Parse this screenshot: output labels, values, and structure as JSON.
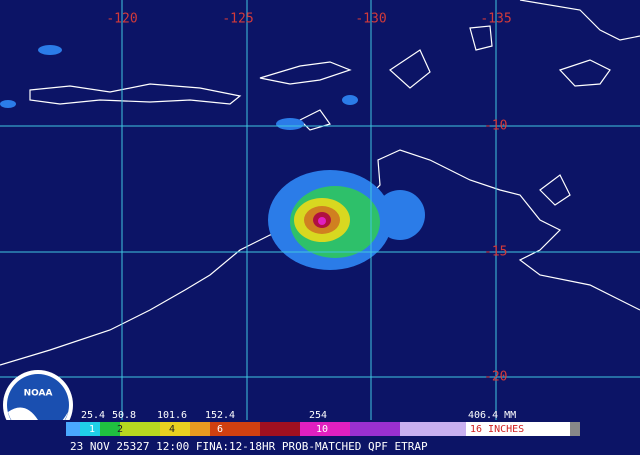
{
  "map": {
    "longitude_labels": [
      "-120",
      "-125",
      "-130",
      "-135"
    ],
    "latitude_labels": [
      "-10",
      "-15",
      "-20"
    ],
    "legend": {
      "mm_labels": [
        "25.4",
        "50.8",
        "101.6",
        "152.4",
        "254",
        "406.4 MM"
      ],
      "inch_labels": [
        "1",
        "2",
        "4",
        "6",
        "10",
        "16 INCHES"
      ]
    },
    "caption": "23 NOV 25327 12:00 FINA:12-18HR PROB-MATCHED QPF ETRAP",
    "logo": "NOAA"
  }
}
